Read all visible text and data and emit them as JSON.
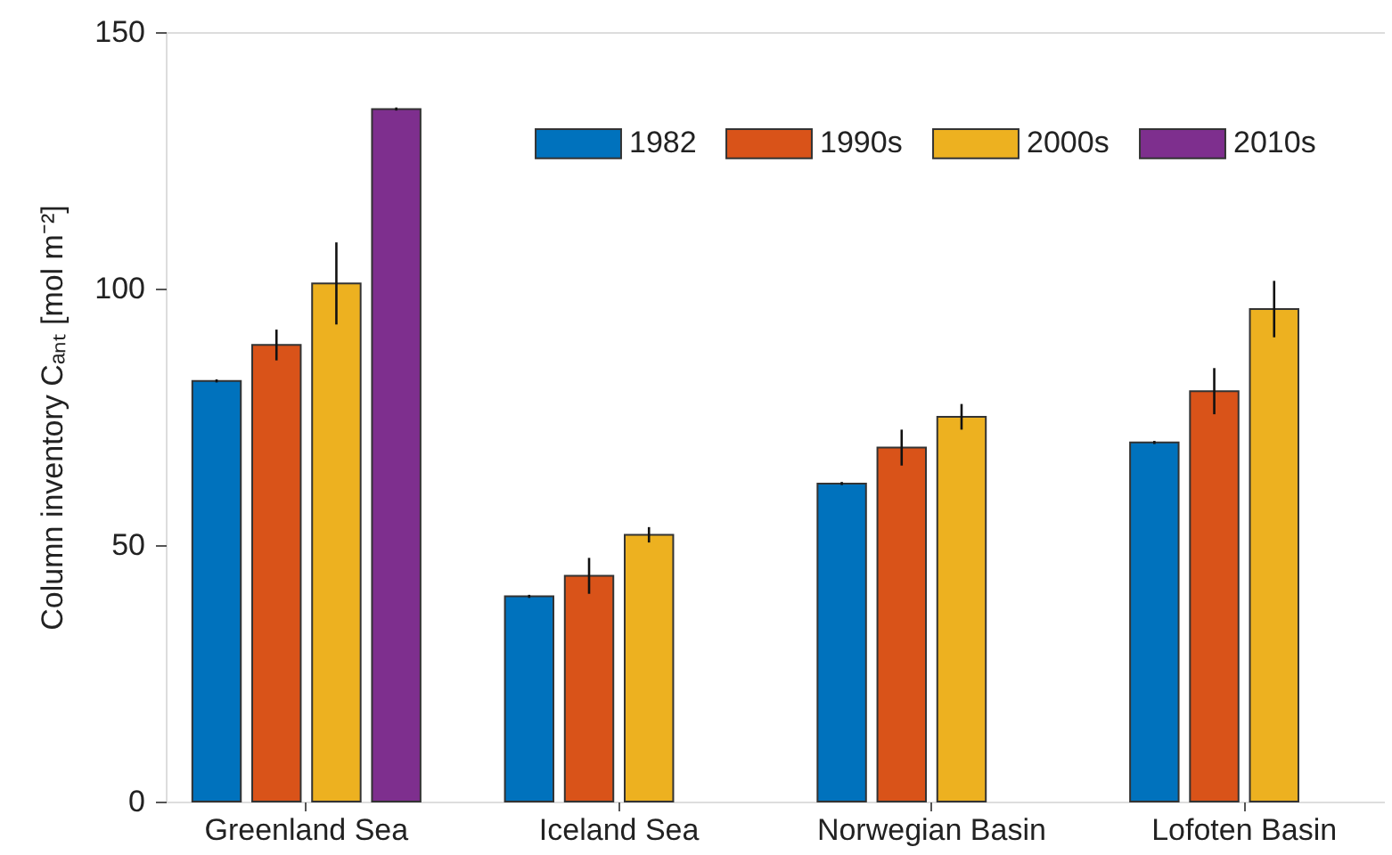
{
  "chart_data": {
    "type": "bar",
    "ylabel": "Column inventory Cₐₙₜ [mol m⁻²]",
    "categories": [
      "Greenland Sea",
      "Iceland Sea",
      "Norwegian Basin",
      "Lofoten Basin"
    ],
    "series": [
      {
        "name": "1982",
        "color": "#0072bd",
        "values": [
          82,
          40,
          62,
          70
        ],
        "errors": [
          0.3,
          0.3,
          0.3,
          0.3
        ]
      },
      {
        "name": "1990s",
        "color": "#d95319",
        "values": [
          89,
          44,
          69,
          80
        ],
        "errors": [
          3,
          3.5,
          3.5,
          4.5
        ]
      },
      {
        "name": "2000s",
        "color": "#edb120",
        "values": [
          101,
          52,
          75,
          96
        ],
        "errors": [
          8,
          1.5,
          2.5,
          5.5
        ]
      },
      {
        "name": "2010s",
        "color": "#7e2f8e",
        "values": [
          135,
          null,
          null,
          null
        ],
        "errors": [
          0.3,
          null,
          null,
          null
        ]
      }
    ],
    "ylim": [
      0,
      150
    ],
    "yticks": [
      0,
      50,
      100,
      150
    ],
    "grid": false,
    "legend": "top right"
  }
}
